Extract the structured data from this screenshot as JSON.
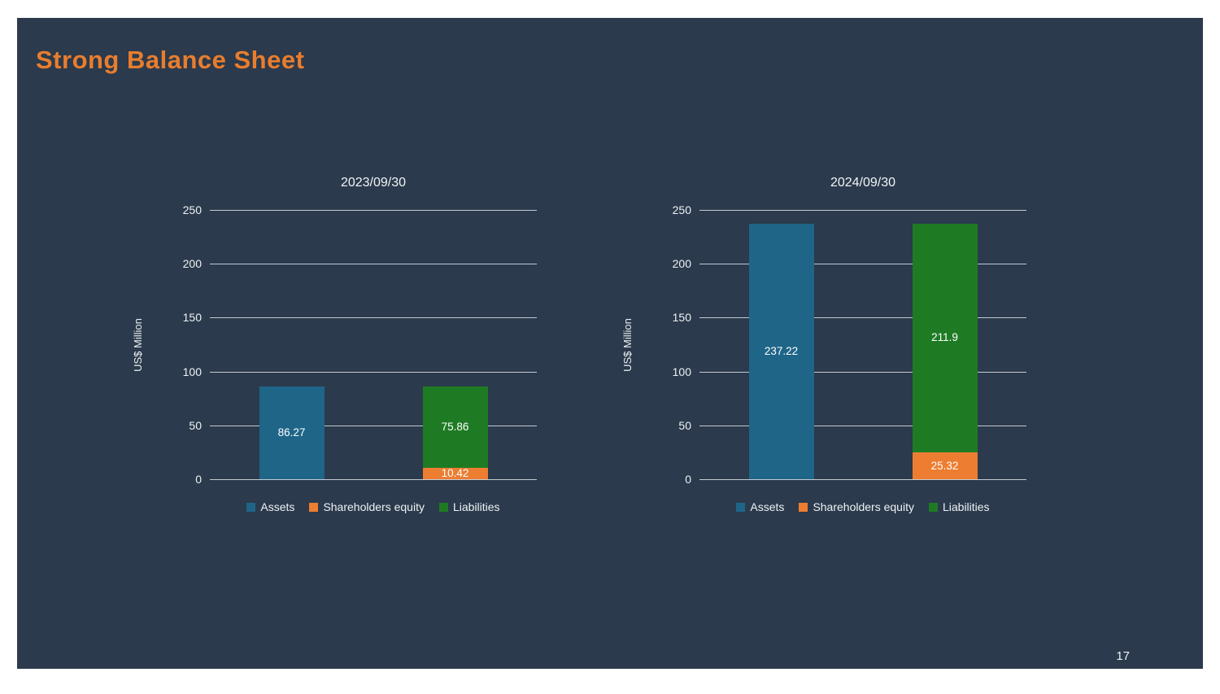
{
  "slide": {
    "title": "Strong Balance Sheet",
    "page_number": "17"
  },
  "colors": {
    "slide_background": "#2b3a4c",
    "frame": "#ffffff",
    "title_text": "#e87d2e",
    "axis_text": "#eef1f4",
    "gridline": "#c4cad2",
    "bar_value_text": "#ffffff",
    "series": {
      "Assets": "#1f6588",
      "Shareholders equity": "#ed7d31",
      "Liabilities": "#1e7b24"
    }
  },
  "chart_data": [
    {
      "type": "bar",
      "title": "2023/09/30",
      "ylabel": "US$ Million",
      "ylim": [
        0,
        250
      ],
      "yticks": [
        0,
        50,
        100,
        150,
        200,
        250
      ],
      "grid": true,
      "legend_position": "bottom",
      "legend": [
        "Assets",
        "Shareholders equity",
        "Liabilities"
      ],
      "bars": [
        {
          "segments": [
            {
              "name": "Assets",
              "value": 86.27,
              "label": "86.27"
            }
          ]
        },
        {
          "segments": [
            {
              "name": "Shareholders equity",
              "value": 10.42,
              "label": "10.42"
            },
            {
              "name": "Liabilities",
              "value": 75.86,
              "label": "75.86"
            }
          ]
        }
      ]
    },
    {
      "type": "bar",
      "title": "2024/09/30",
      "ylabel": "US$ Million",
      "ylim": [
        0,
        250
      ],
      "yticks": [
        0,
        50,
        100,
        150,
        200,
        250
      ],
      "grid": true,
      "legend_position": "bottom",
      "legend": [
        "Assets",
        "Shareholders equity",
        "Liabilities"
      ],
      "bars": [
        {
          "segments": [
            {
              "name": "Assets",
              "value": 237.22,
              "label": "237.22"
            }
          ]
        },
        {
          "segments": [
            {
              "name": "Shareholders equity",
              "value": 25.32,
              "label": "25.32"
            },
            {
              "name": "Liabilities",
              "value": 211.9,
              "label": "211.9"
            }
          ]
        }
      ]
    }
  ]
}
